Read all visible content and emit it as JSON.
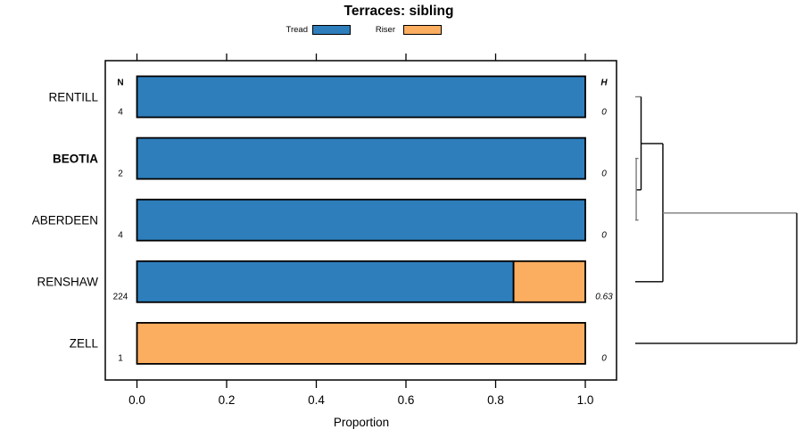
{
  "title": "Terraces: sibling",
  "legend": {
    "items": [
      {
        "label": "Tread",
        "color": "#2E7EBC"
      },
      {
        "label": "Riser",
        "color": "#FBAD60"
      }
    ]
  },
  "columns": {
    "n_header": "N",
    "h_header": "H"
  },
  "chart_data": {
    "type": "bar",
    "orientation": "horizontal",
    "stacked": true,
    "title": "Terraces: sibling",
    "xlabel": "Proportion",
    "xlim": [
      0,
      1
    ],
    "x_ticks": [
      0.0,
      0.2,
      0.4,
      0.6,
      0.8,
      1.0
    ],
    "x_tick_labels": [
      "0.0",
      "0.2",
      "0.4",
      "0.6",
      "0.8",
      "1.0"
    ],
    "categories": [
      "RENTILL",
      "BEOTIA",
      "ABERDEEN",
      "RENSHAW",
      "ZELL"
    ],
    "emphasized_category": "BEOTIA",
    "series": [
      {
        "name": "Tread",
        "color": "#2E7EBC",
        "values": [
          1,
          1,
          1,
          0.84,
          0
        ]
      },
      {
        "name": "Riser",
        "color": "#FBAD60",
        "values": [
          0,
          0,
          0,
          0.16,
          1
        ]
      }
    ],
    "n_values": [
      "4",
      "2",
      "4",
      "224",
      "1"
    ],
    "h_values": [
      "0",
      "0",
      "0",
      "0.63",
      "0"
    ],
    "grid": false,
    "legend_position": "top",
    "bar_edge_color": "#000000",
    "dendrogram": {
      "orientation": "right",
      "gray_color": "#7b7b7b",
      "black_color": "#000000",
      "segments": [
        {
          "x1": 0,
          "y1": 0,
          "x2": 0.036,
          "y2": 0,
          "color": "gray"
        },
        {
          "x1": 0.036,
          "y1": 0,
          "x2": 0.036,
          "y2": 1.51,
          "color": "black"
        },
        {
          "x1": 0.006,
          "y1": 1.51,
          "x2": 0.036,
          "y2": 1.51,
          "color": "black"
        },
        {
          "x1": 0.006,
          "y1": 1,
          "x2": 0.006,
          "y2": 2,
          "color": "gray"
        },
        {
          "x1": 0,
          "y1": 1,
          "x2": 0.02,
          "y2": 1,
          "color": "gray"
        },
        {
          "x1": 0,
          "y1": 2,
          "x2": 0.02,
          "y2": 2,
          "color": "gray"
        },
        {
          "x1": 0.036,
          "y1": 0.759,
          "x2": 0.171,
          "y2": 0.759,
          "color": "black"
        },
        {
          "x1": 0.171,
          "y1": 0.759,
          "x2": 0.171,
          "y2": 3,
          "color": "black"
        },
        {
          "x1": 0,
          "y1": 3,
          "x2": 0.171,
          "y2": 3,
          "color": "black"
        },
        {
          "x1": 0.171,
          "y1": 1.886,
          "x2": 1,
          "y2": 1.886,
          "color": "gray"
        },
        {
          "x1": 1,
          "y1": 1.886,
          "x2": 1,
          "y2": 4,
          "color": "black"
        },
        {
          "x1": 0,
          "y1": 4,
          "x2": 1,
          "y2": 4,
          "color": "black"
        }
      ]
    }
  }
}
